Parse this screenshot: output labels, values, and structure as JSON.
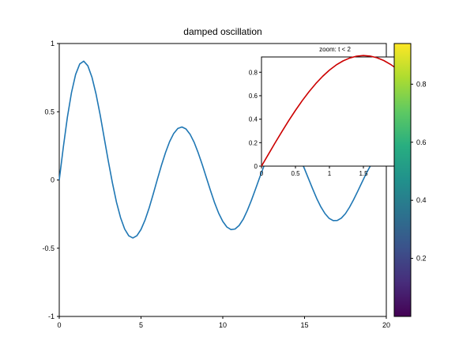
{
  "chart_data": [
    {
      "type": "line",
      "title": "damped oscillation",
      "xlabel": "",
      "ylabel": "",
      "xlim": [
        0,
        20
      ],
      "ylim": [
        -1,
        1
      ],
      "x_ticks": [
        "0",
        "5",
        "10",
        "15",
        "20"
      ],
      "y_ticks": [
        "-1",
        "-0.5",
        "0",
        "0.5",
        "1"
      ],
      "grid": false,
      "series": [
        {
          "color": "#1f77b4",
          "x": [
            0,
            0.25,
            0.5,
            0.75,
            1,
            1.25,
            1.5,
            1.75,
            2,
            2.25,
            2.5,
            2.75,
            3,
            3.25,
            3.5,
            3.75,
            4,
            4.25,
            4.5,
            4.75,
            5,
            5.25,
            5.5,
            5.75,
            6,
            6.25,
            6.5,
            6.75,
            7,
            7.25,
            7.5,
            7.75,
            8,
            8.25,
            8.5,
            8.75,
            9,
            9.25,
            9.5,
            9.75,
            10,
            10.25,
            10.5,
            10.75,
            11,
            11.25,
            11.5,
            11.75,
            12,
            12.25,
            12.5,
            12.75,
            13,
            13.25,
            13.5,
            13.75,
            14,
            14.25,
            14.5,
            14.75,
            15,
            15.25,
            15.5,
            15.75,
            16,
            16.25,
            16.5,
            16.75,
            17,
            17.25,
            17.5,
            17.75,
            18,
            18.25,
            18.5,
            18.75,
            19,
            19.25,
            19.5,
            19.75,
            20
          ],
          "y": [
            0,
            0.2422,
            0.4603,
            0.6406,
            0.7727,
            0.8501,
            0.8707,
            0.8364,
            0.7529,
            0.6292,
            0.4767,
            0.3086,
            0.1385,
            -0.0217,
            -0.1618,
            -0.2759,
            -0.3592,
            -0.409,
            -0.4249,
            -0.4083,
            -0.3624,
            -0.292,
            -0.2029,
            -0.1018,
            0.0044,
            0.1078,
            0.2021,
            0.2814,
            0.3409,
            0.3772,
            0.3882,
            0.3737,
            0.3352,
            0.2755,
            0.199,
            0.1108,
            0.0163,
            -0.0781,
            -0.1665,
            -0.2433,
            -0.304,
            -0.3449,
            -0.3637,
            -0.3596,
            -0.3334,
            -0.2873,
            -0.2246,
            -0.1496,
            -0.0672,
            0.0171,
            0.0982,
            0.1713,
            0.2318,
            0.2763,
            0.3022,
            0.3082,
            0.2943,
            0.2618,
            0.2131,
            0.1516,
            0.0813,
            0.0069,
            -0.0671,
            -0.1367,
            -0.1977,
            -0.2465,
            -0.2803,
            -0.2973,
            -0.2968,
            -0.2792,
            -0.2461,
            -0.2001,
            -0.1445,
            -0.083,
            -0.0197,
            0.0415,
            0.0978,
            0.1462,
            0.1841,
            0.2096,
            0.2216
          ]
        }
      ]
    },
    {
      "type": "line",
      "title": "zoom: t < 2",
      "xlabel": "",
      "ylabel": "",
      "xlim": [
        0,
        2
      ],
      "ylim": [
        0,
        0.93
      ],
      "x_ticks": [
        "0",
        "0.5",
        "1",
        "1.5"
      ],
      "y_ticks": [
        "0",
        "0.2",
        "0.4",
        "0.6",
        "0.8"
      ],
      "grid": false,
      "series": [
        {
          "color": "#cc0000",
          "x": [
            0,
            0.1,
            0.2,
            0.3,
            0.4,
            0.5,
            0.6,
            0.7,
            0.8,
            0.9,
            1.0,
            1.1,
            1.2,
            1.3,
            1.4,
            1.5,
            1.6,
            1.7,
            1.8,
            1.9,
            2.0
          ],
          "y": [
            0,
            0.0994,
            0.1978,
            0.2939,
            0.3866,
            0.4749,
            0.5577,
            0.6342,
            0.7035,
            0.765,
            0.818,
            0.8619,
            0.8965,
            0.9215,
            0.9366,
            0.9418,
            0.9372,
            0.923,
            0.8994,
            0.8668,
            0.8255
          ]
        }
      ]
    },
    {
      "type": "colorbar",
      "colormap": "viridis",
      "range": [
        0,
        0.94
      ],
      "ticks": [
        "0.2",
        "0.4",
        "0.6",
        "0.8"
      ]
    }
  ]
}
